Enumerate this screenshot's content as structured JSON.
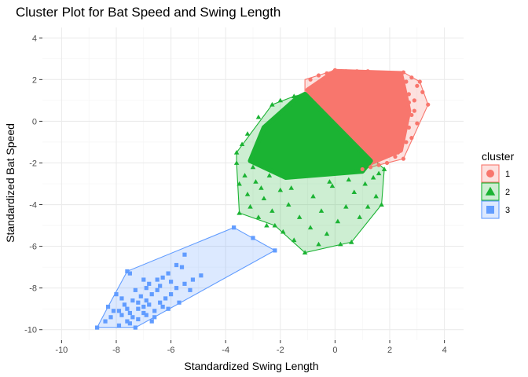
{
  "chart_data": {
    "type": "scatter",
    "title": "Cluster Plot for Bat Speed and Swing Length",
    "xlabel": "Standardized Swing Length",
    "ylabel": "Standardized Bat Speed",
    "xlim": [
      -10.7,
      4.7
    ],
    "ylim": [
      -10.5,
      4.5
    ],
    "x_ticks": [
      -10,
      -8,
      -6,
      -4,
      -2,
      0,
      2,
      4
    ],
    "y_ticks": [
      -10,
      -8,
      -6,
      -4,
      -2,
      0,
      2,
      4
    ],
    "x_tick_labels": [
      "-10",
      "-8",
      "-6",
      "-4",
      "-2",
      "0",
      "2",
      "4"
    ],
    "y_tick_labels": [
      "-10",
      "-8",
      "-6",
      "-4",
      "-2",
      "0",
      "2",
      "4"
    ],
    "grid": true,
    "legend": {
      "title": "cluster",
      "placement": "right"
    },
    "series": [
      {
        "name": "1",
        "shape": "circle",
        "color": "#F8766D",
        "hull": [
          [
            -1.1,
            2.0
          ],
          [
            0.0,
            2.45
          ],
          [
            2.5,
            2.35
          ],
          [
            3.1,
            1.9
          ],
          [
            3.4,
            0.8
          ],
          [
            2.5,
            -1.8
          ],
          [
            1.0,
            -2.3
          ],
          [
            -0.2,
            -2.0
          ],
          [
            -1.1,
            1.3
          ]
        ],
        "dense_region": [
          [
            -1.0,
            1.5
          ],
          [
            0.0,
            2.4
          ],
          [
            2.4,
            2.3
          ],
          [
            2.7,
            0.5
          ],
          [
            2.4,
            -1.4
          ],
          [
            1.3,
            -2.0
          ],
          [
            0.6,
            -1.9
          ]
        ],
        "points": [
          [
            3.4,
            0.8
          ],
          [
            3.0,
            1.7
          ],
          [
            3.1,
            1.9
          ],
          [
            2.9,
            1.0
          ],
          [
            2.8,
            0.3
          ],
          [
            2.7,
            -0.3
          ],
          [
            2.6,
            -1.0
          ],
          [
            2.5,
            -1.8
          ],
          [
            2.3,
            -1.5
          ],
          [
            2.6,
            1.9
          ],
          [
            2.7,
            1.3
          ],
          [
            2.6,
            0.6
          ],
          [
            2.5,
            -0.6
          ],
          [
            2.9,
            0.5
          ],
          [
            3.0,
            -0.1
          ],
          [
            2.4,
            -1.1
          ],
          [
            2.2,
            -1.7
          ],
          [
            1.9,
            -2.0
          ],
          [
            1.6,
            -2.1
          ],
          [
            1.3,
            -2.2
          ],
          [
            1.0,
            -2.3
          ],
          [
            2.8,
            2.1
          ],
          [
            2.5,
            2.35
          ],
          [
            2.2,
            2.3
          ],
          [
            -0.9,
            2.0
          ],
          [
            -0.6,
            2.2
          ],
          [
            -0.3,
            2.3
          ],
          [
            0.0,
            2.45
          ],
          [
            0.4,
            2.4
          ],
          [
            0.8,
            2.4
          ],
          [
            1.2,
            2.4
          ],
          [
            1.6,
            2.35
          ],
          [
            3.2,
            1.4
          ],
          [
            2.8,
            -0.8
          ],
          [
            2.7,
            0.9
          ]
        ]
      },
      {
        "name": "2",
        "shape": "triangle",
        "color": "#1BB333",
        "hull": [
          [
            -1.5,
            1.2
          ],
          [
            -1.1,
            1.3
          ],
          [
            1.8,
            -2.3
          ],
          [
            1.7,
            -4.0
          ],
          [
            0.6,
            -5.8
          ],
          [
            -1.1,
            -6.3
          ],
          [
            -2.2,
            -5.0
          ],
          [
            -3.5,
            -4.4
          ],
          [
            -3.6,
            -2.0
          ],
          [
            -3.6,
            -1.5
          ],
          [
            -2.3,
            0.8
          ]
        ],
        "dense_region": [
          [
            -1.4,
            1.1
          ],
          [
            -1.1,
            1.3
          ],
          [
            1.3,
            -1.9
          ],
          [
            1.0,
            -2.4
          ],
          [
            -1.8,
            -2.7
          ],
          [
            -3.1,
            -1.9
          ],
          [
            -2.6,
            -0.3
          ]
        ],
        "points": [
          [
            -3.6,
            -1.5
          ],
          [
            -3.6,
            -2.0
          ],
          [
            -3.5,
            -3.0
          ],
          [
            -3.5,
            -4.4
          ],
          [
            -3.3,
            -2.6
          ],
          [
            -3.2,
            -3.5
          ],
          [
            -3.1,
            -4.1
          ],
          [
            -2.9,
            -2.9
          ],
          [
            -2.8,
            -4.6
          ],
          [
            -2.6,
            -3.7
          ],
          [
            -2.5,
            -5.0
          ],
          [
            -2.3,
            -4.3
          ],
          [
            -2.2,
            -5.0
          ],
          [
            -2.0,
            -3.3
          ],
          [
            -1.9,
            -5.3
          ],
          [
            -1.7,
            -4.0
          ],
          [
            -1.5,
            -5.7
          ],
          [
            -1.3,
            -4.6
          ],
          [
            -1.1,
            -6.3
          ],
          [
            -0.9,
            -5.1
          ],
          [
            -0.8,
            -3.6
          ],
          [
            -0.6,
            -5.9
          ],
          [
            -0.5,
            -4.3
          ],
          [
            -0.3,
            -5.4
          ],
          [
            -0.1,
            -3.1
          ],
          [
            0.1,
            -4.8
          ],
          [
            0.2,
            -5.9
          ],
          [
            0.4,
            -4.1
          ],
          [
            0.6,
            -5.8
          ],
          [
            0.7,
            -3.4
          ],
          [
            0.9,
            -4.6
          ],
          [
            1.1,
            -3.0
          ],
          [
            1.2,
            -4.1
          ],
          [
            1.4,
            -2.7
          ],
          [
            1.5,
            -3.6
          ],
          [
            1.7,
            -4.0
          ],
          [
            1.8,
            -2.3
          ],
          [
            1.6,
            -2.5
          ],
          [
            -2.3,
            0.8
          ],
          [
            -2.8,
            0.2
          ],
          [
            -3.2,
            -0.6
          ],
          [
            -3.4,
            -1.1
          ],
          [
            -1.5,
            1.2
          ],
          [
            -2.0,
            1.0
          ],
          [
            -3.0,
            -2.2
          ],
          [
            -2.4,
            -2.6
          ],
          [
            -0.2,
            -2.9
          ],
          [
            0.5,
            -2.8
          ],
          [
            -1.6,
            -3.2
          ],
          [
            -2.7,
            -3.2
          ]
        ]
      },
      {
        "name": "3",
        "shape": "square",
        "color": "#619CFF",
        "hull": [
          [
            -8.7,
            -9.9
          ],
          [
            -7.3,
            -9.9
          ],
          [
            -2.2,
            -6.2
          ],
          [
            -3.7,
            -5.1
          ],
          [
            -7.6,
            -7.2
          ],
          [
            -8.3,
            -8.9
          ]
        ],
        "points": [
          [
            -8.7,
            -9.9
          ],
          [
            -7.6,
            -7.2
          ],
          [
            -7.5,
            -7.3
          ],
          [
            -3.7,
            -5.1
          ],
          [
            -3.0,
            -5.6
          ],
          [
            -2.2,
            -6.2
          ],
          [
            -5.5,
            -6.4
          ],
          [
            -5.6,
            -7.0
          ],
          [
            -5.8,
            -6.9
          ],
          [
            -6.1,
            -7.3
          ],
          [
            -6.3,
            -7.5
          ],
          [
            -6.5,
            -7.6
          ],
          [
            -6.9,
            -8.0
          ],
          [
            -7.3,
            -9.9
          ],
          [
            -7.6,
            -9.6
          ],
          [
            -7.9,
            -9.8
          ],
          [
            -8.2,
            -9.4
          ],
          [
            -8.3,
            -8.9
          ],
          [
            -8.1,
            -9.1
          ],
          [
            -7.8,
            -9.3
          ],
          [
            -7.5,
            -9.2
          ],
          [
            -7.2,
            -9.0
          ],
          [
            -7.0,
            -9.2
          ],
          [
            -6.8,
            -8.8
          ],
          [
            -6.6,
            -9.1
          ],
          [
            -6.4,
            -8.7
          ],
          [
            -6.2,
            -8.5
          ],
          [
            -6.0,
            -8.3
          ],
          [
            -5.8,
            -8.0
          ],
          [
            -7.7,
            -8.8
          ],
          [
            -7.4,
            -8.6
          ],
          [
            -7.1,
            -8.4
          ],
          [
            -6.9,
            -8.6
          ],
          [
            -6.7,
            -8.3
          ],
          [
            -6.5,
            -8.1
          ],
          [
            -7.3,
            -8.1
          ],
          [
            -7.0,
            -8.9
          ],
          [
            -7.9,
            -9.1
          ],
          [
            -6.3,
            -8.9
          ],
          [
            -6.6,
            -9.4
          ],
          [
            -7.2,
            -9.5
          ],
          [
            -7.5,
            -9.7
          ],
          [
            -5.2,
            -7.6
          ],
          [
            -4.9,
            -7.4
          ],
          [
            -5.3,
            -8.1
          ],
          [
            -6.0,
            -7.7
          ],
          [
            -6.8,
            -7.8
          ],
          [
            -7.8,
            -8.5
          ],
          [
            -8.0,
            -8.3
          ],
          [
            -6.1,
            -9.0
          ],
          [
            -5.7,
            -8.7
          ],
          [
            -7.4,
            -9.4
          ],
          [
            -6.9,
            -9.3
          ],
          [
            -7.6,
            -9.0
          ],
          [
            -8.4,
            -9.6
          ],
          [
            -7.0,
            -7.6
          ],
          [
            -6.4,
            -7.9
          ],
          [
            -5.5,
            -7.8
          ],
          [
            -7.2,
            -8.7
          ],
          [
            -6.7,
            -9.6
          ]
        ]
      }
    ]
  }
}
